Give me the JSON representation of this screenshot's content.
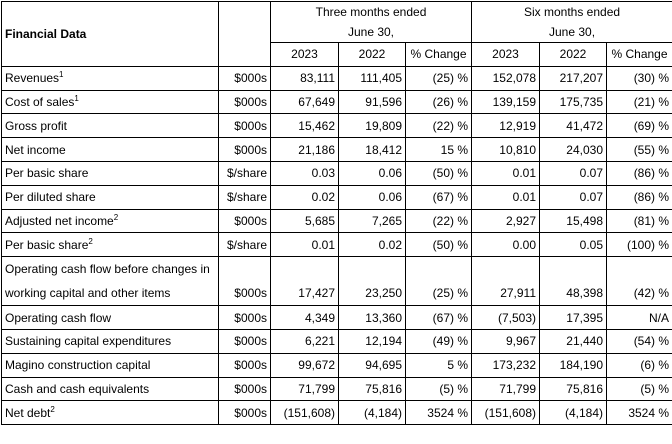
{
  "header": {
    "financial_data": "Financial Data",
    "period_three": "Three months ended",
    "period_six": "Six months ended",
    "period_date": "June 30,",
    "columns": [
      "2023",
      "2022",
      "% Change",
      "2023",
      "2022",
      "% Change"
    ]
  },
  "rows": [
    {
      "label": "Revenues",
      "sup": "1",
      "unit": "$000s",
      "v": [
        "83,111",
        "111,405",
        "(25) %",
        "152,078",
        "217,207",
        "(30) %"
      ]
    },
    {
      "label": "Cost of sales",
      "sup": "1",
      "unit": "$000s",
      "v": [
        "67,649",
        "91,596",
        "(26) %",
        "139,159",
        "175,735",
        "(21) %"
      ]
    },
    {
      "label": "Gross profit",
      "sup": "",
      "unit": "$000s",
      "v": [
        "15,462",
        "19,809",
        "(22) %",
        "12,919",
        "41,472",
        "(69) %"
      ]
    },
    {
      "label": "Net income",
      "sup": "",
      "unit": "$000s",
      "v": [
        "21,186",
        "18,412",
        "15 %",
        "10,810",
        "24,030",
        "(55) %"
      ]
    },
    {
      "label": "Per basic share",
      "sup": "",
      "unit": "$/share",
      "v": [
        "0.03",
        "0.06",
        "(50) %",
        "0.01",
        "0.07",
        "(86) %"
      ]
    },
    {
      "label": "Per diluted share",
      "sup": "",
      "unit": "$/share",
      "v": [
        "0.02",
        "0.06",
        "(67) %",
        "0.01",
        "0.07",
        "(86) %"
      ]
    },
    {
      "label": "Adjusted net income",
      "sup": "2",
      "unit": "$000s",
      "v": [
        "5,685",
        "7,265",
        "(22) %",
        "2,927",
        "15,498",
        "(81) %"
      ]
    },
    {
      "label": "Per basic share",
      "sup": "2",
      "unit": "$/share",
      "v": [
        "0.01",
        "0.02",
        "(50) %",
        "0.00",
        "0.05",
        "(100) %"
      ]
    },
    {
      "label_line1": "Operating cash flow before changes in",
      "label_line2": "working capital and other items",
      "unit": "$000s",
      "v": [
        "17,427",
        "23,250",
        "(25) %",
        "27,911",
        "48,398",
        "(42) %"
      ]
    },
    {
      "label": "Operating cash flow",
      "sup": "",
      "unit": "$000s",
      "v": [
        "4,349",
        "13,360",
        "(67) %",
        "(7,503)",
        "17,395",
        "N/A"
      ]
    },
    {
      "label": "Sustaining capital expenditures",
      "sup": "",
      "unit": "$000s",
      "v": [
        "6,221",
        "12,194",
        "(49) %",
        "9,967",
        "21,440",
        "(54) %"
      ]
    },
    {
      "label": "Magino construction capital",
      "sup": "",
      "unit": "$000s",
      "v": [
        "99,672",
        "94,695",
        "5 %",
        "173,232",
        "184,190",
        "(6) %"
      ]
    },
    {
      "label": "Cash and cash equivalents",
      "sup": "",
      "unit": "$000s",
      "v": [
        "71,799",
        "75,816",
        "(5) %",
        "71,799",
        "75,816",
        "(5) %"
      ]
    },
    {
      "label": "Net debt",
      "sup": "2",
      "unit": "$000s",
      "v": [
        "(151,608)",
        "(4,184)",
        "3524 %",
        "(151,608)",
        "(4,184)",
        "3524 %"
      ]
    }
  ]
}
